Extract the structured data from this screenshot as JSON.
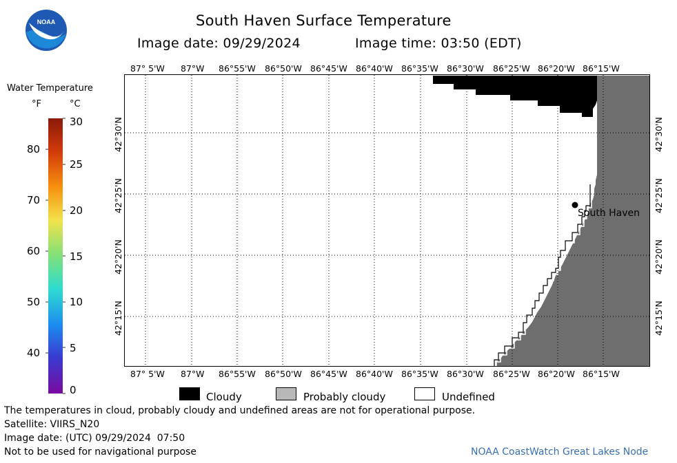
{
  "header": {
    "title": "South Haven Surface Temperature",
    "image_date_label": "Image date: 09/29/2024",
    "image_time_label": "Image time: 03:50 (EDT)"
  },
  "logo": {
    "text": "NOAA"
  },
  "colorbar": {
    "title": "Water Temperature",
    "unit_f": "°F",
    "unit_c": "°C",
    "f_ticks": [
      "80",
      "70",
      "60",
      "50",
      "40"
    ],
    "c_ticks": [
      "30",
      "25",
      "20",
      "15",
      "10",
      "5",
      "0"
    ]
  },
  "map": {
    "lon_labels": [
      "87° 5'W",
      "87°W",
      "86°55'W",
      "86°50'W",
      "86°45'W",
      "86°40'W",
      "86°35'W",
      "86°30'W",
      "86°25'W",
      "86°20'W",
      "86°15'W"
    ],
    "lat_labels": [
      "42°30'N",
      "42°25'N",
      "42°20'N",
      "42°15'N"
    ],
    "place_label": "South Haven"
  },
  "legend": {
    "cloudy": "Cloudy",
    "probably_cloudy": "Probably cloudy",
    "undefined": "Undefined",
    "colors": {
      "cloudy": "#000000",
      "probably_cloudy": "#b8b8b8",
      "undefined": "#ffffff",
      "land": "#6e6e6e"
    }
  },
  "footer": {
    "disclaimer": "The temperatures in cloud, probably cloudy and undefined areas are not for operational purpose.",
    "satellite": "Satellite: VIIRS_N20",
    "utc_date": "Image date: (UTC) 09/29/2024  07:50",
    "navigation": "Not to be used for navigational purpose",
    "credit": "NOAA CoastWatch Great Lakes Node"
  }
}
